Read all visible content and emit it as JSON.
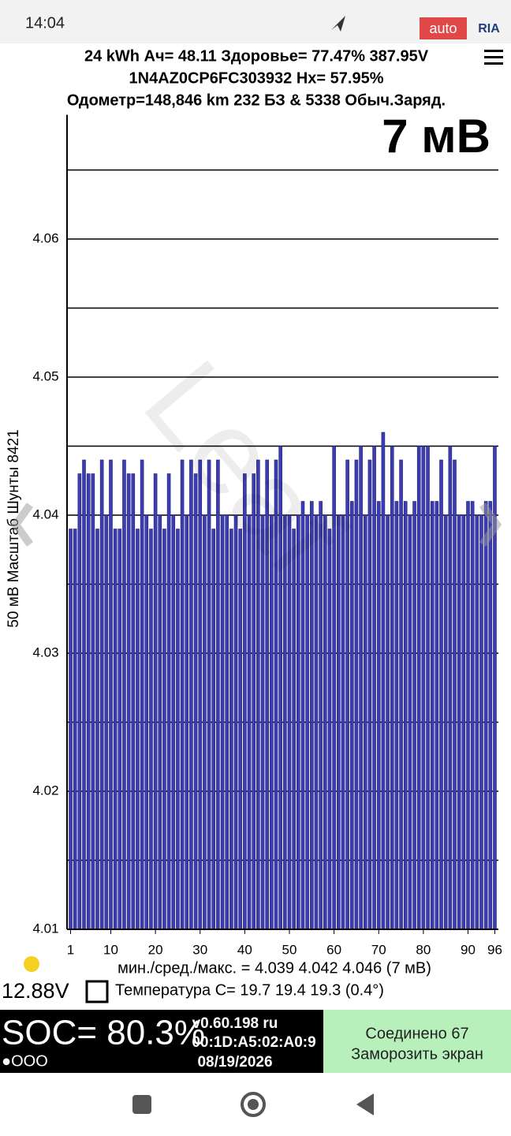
{
  "status_bar": {
    "time": "14:04",
    "watermark_left": "auto",
    "watermark_right": "RIA"
  },
  "header": {
    "line1": "24 kWh  Ач= 48.11  Здоровье= 77.47%  387.95V",
    "line2": "1N4AZ0CP6FC303932   Hx= 57.95%",
    "line3": "Одометр=148,846 km 232 БЗ & 5338 Обыч.Заряд.",
    "spread": "7 мВ"
  },
  "chart_data": {
    "type": "bar",
    "ylabel": "50 мВ Масштаб  Шунты 8421",
    "watermark": "Leaf",
    "color": "#3d3db0",
    "grid": true,
    "x": [
      1,
      2,
      3,
      4,
      5,
      6,
      7,
      8,
      9,
      10,
      11,
      12,
      13,
      14,
      15,
      16,
      17,
      18,
      19,
      20,
      21,
      22,
      23,
      24,
      25,
      26,
      27,
      28,
      29,
      30,
      31,
      32,
      33,
      34,
      35,
      36,
      37,
      38,
      39,
      40,
      41,
      42,
      43,
      44,
      45,
      46,
      47,
      48,
      49,
      50,
      51,
      52,
      53,
      54,
      55,
      56,
      57,
      58,
      59,
      60,
      61,
      62,
      63,
      64,
      65,
      66,
      67,
      68,
      69,
      70,
      71,
      72,
      73,
      74,
      75,
      76,
      77,
      78,
      79,
      80,
      81,
      82,
      83,
      84,
      85,
      86,
      87,
      88,
      89,
      90,
      91,
      92,
      93,
      94,
      95,
      96
    ],
    "values": [
      4.039,
      4.039,
      4.043,
      4.044,
      4.043,
      4.043,
      4.039,
      4.044,
      4.04,
      4.044,
      4.039,
      4.039,
      4.044,
      4.043,
      4.043,
      4.039,
      4.044,
      4.04,
      4.039,
      4.043,
      4.04,
      4.039,
      4.043,
      4.04,
      4.039,
      4.044,
      4.04,
      4.044,
      4.043,
      4.044,
      4.04,
      4.044,
      4.039,
      4.044,
      4.04,
      4.04,
      4.039,
      4.04,
      4.039,
      4.043,
      4.04,
      4.043,
      4.044,
      4.04,
      4.044,
      4.04,
      4.044,
      4.045,
      4.04,
      4.04,
      4.039,
      4.04,
      4.041,
      4.04,
      4.041,
      4.04,
      4.041,
      4.04,
      4.039,
      4.045,
      4.04,
      4.04,
      4.044,
      4.041,
      4.044,
      4.045,
      4.04,
      4.044,
      4.045,
      4.041,
      4.046,
      4.04,
      4.045,
      4.041,
      4.044,
      4.041,
      4.04,
      4.041,
      4.045,
      4.045,
      4.045,
      4.041,
      4.041,
      4.044,
      4.04,
      4.045,
      4.044,
      4.04,
      4.04,
      4.041,
      4.041,
      4.04,
      4.04,
      4.041,
      4.041,
      4.045
    ],
    "xlim": [
      0.2,
      96.8
    ],
    "xticks": [
      1,
      10,
      20,
      30,
      40,
      50,
      60,
      70,
      80,
      90,
      96
    ],
    "ylim": [
      4.01,
      4.069
    ],
    "yticks": [
      4.01,
      4.02,
      4.03,
      4.04,
      4.05,
      4.06
    ],
    "grid_minor": [
      4.015,
      4.025,
      4.035,
      4.045,
      4.055,
      4.065
    ]
  },
  "stats": {
    "minmax": "мин./сред./макс. = 4.039 4.042 4.046  (7 мВ)",
    "aux_voltage": "12.88V",
    "temperature": "Температура С= 19.7  19.4  19.3  (0.4°)"
  },
  "footer": {
    "soc": "SOC= 80.3%",
    "dots": "●OOO",
    "version": "v0.60.198 ru",
    "mac": "00:1D:A5:02:A0:9",
    "date": "08/19/2026",
    "connected": "Соединено 67",
    "freeze": "Замoрозить экран"
  }
}
